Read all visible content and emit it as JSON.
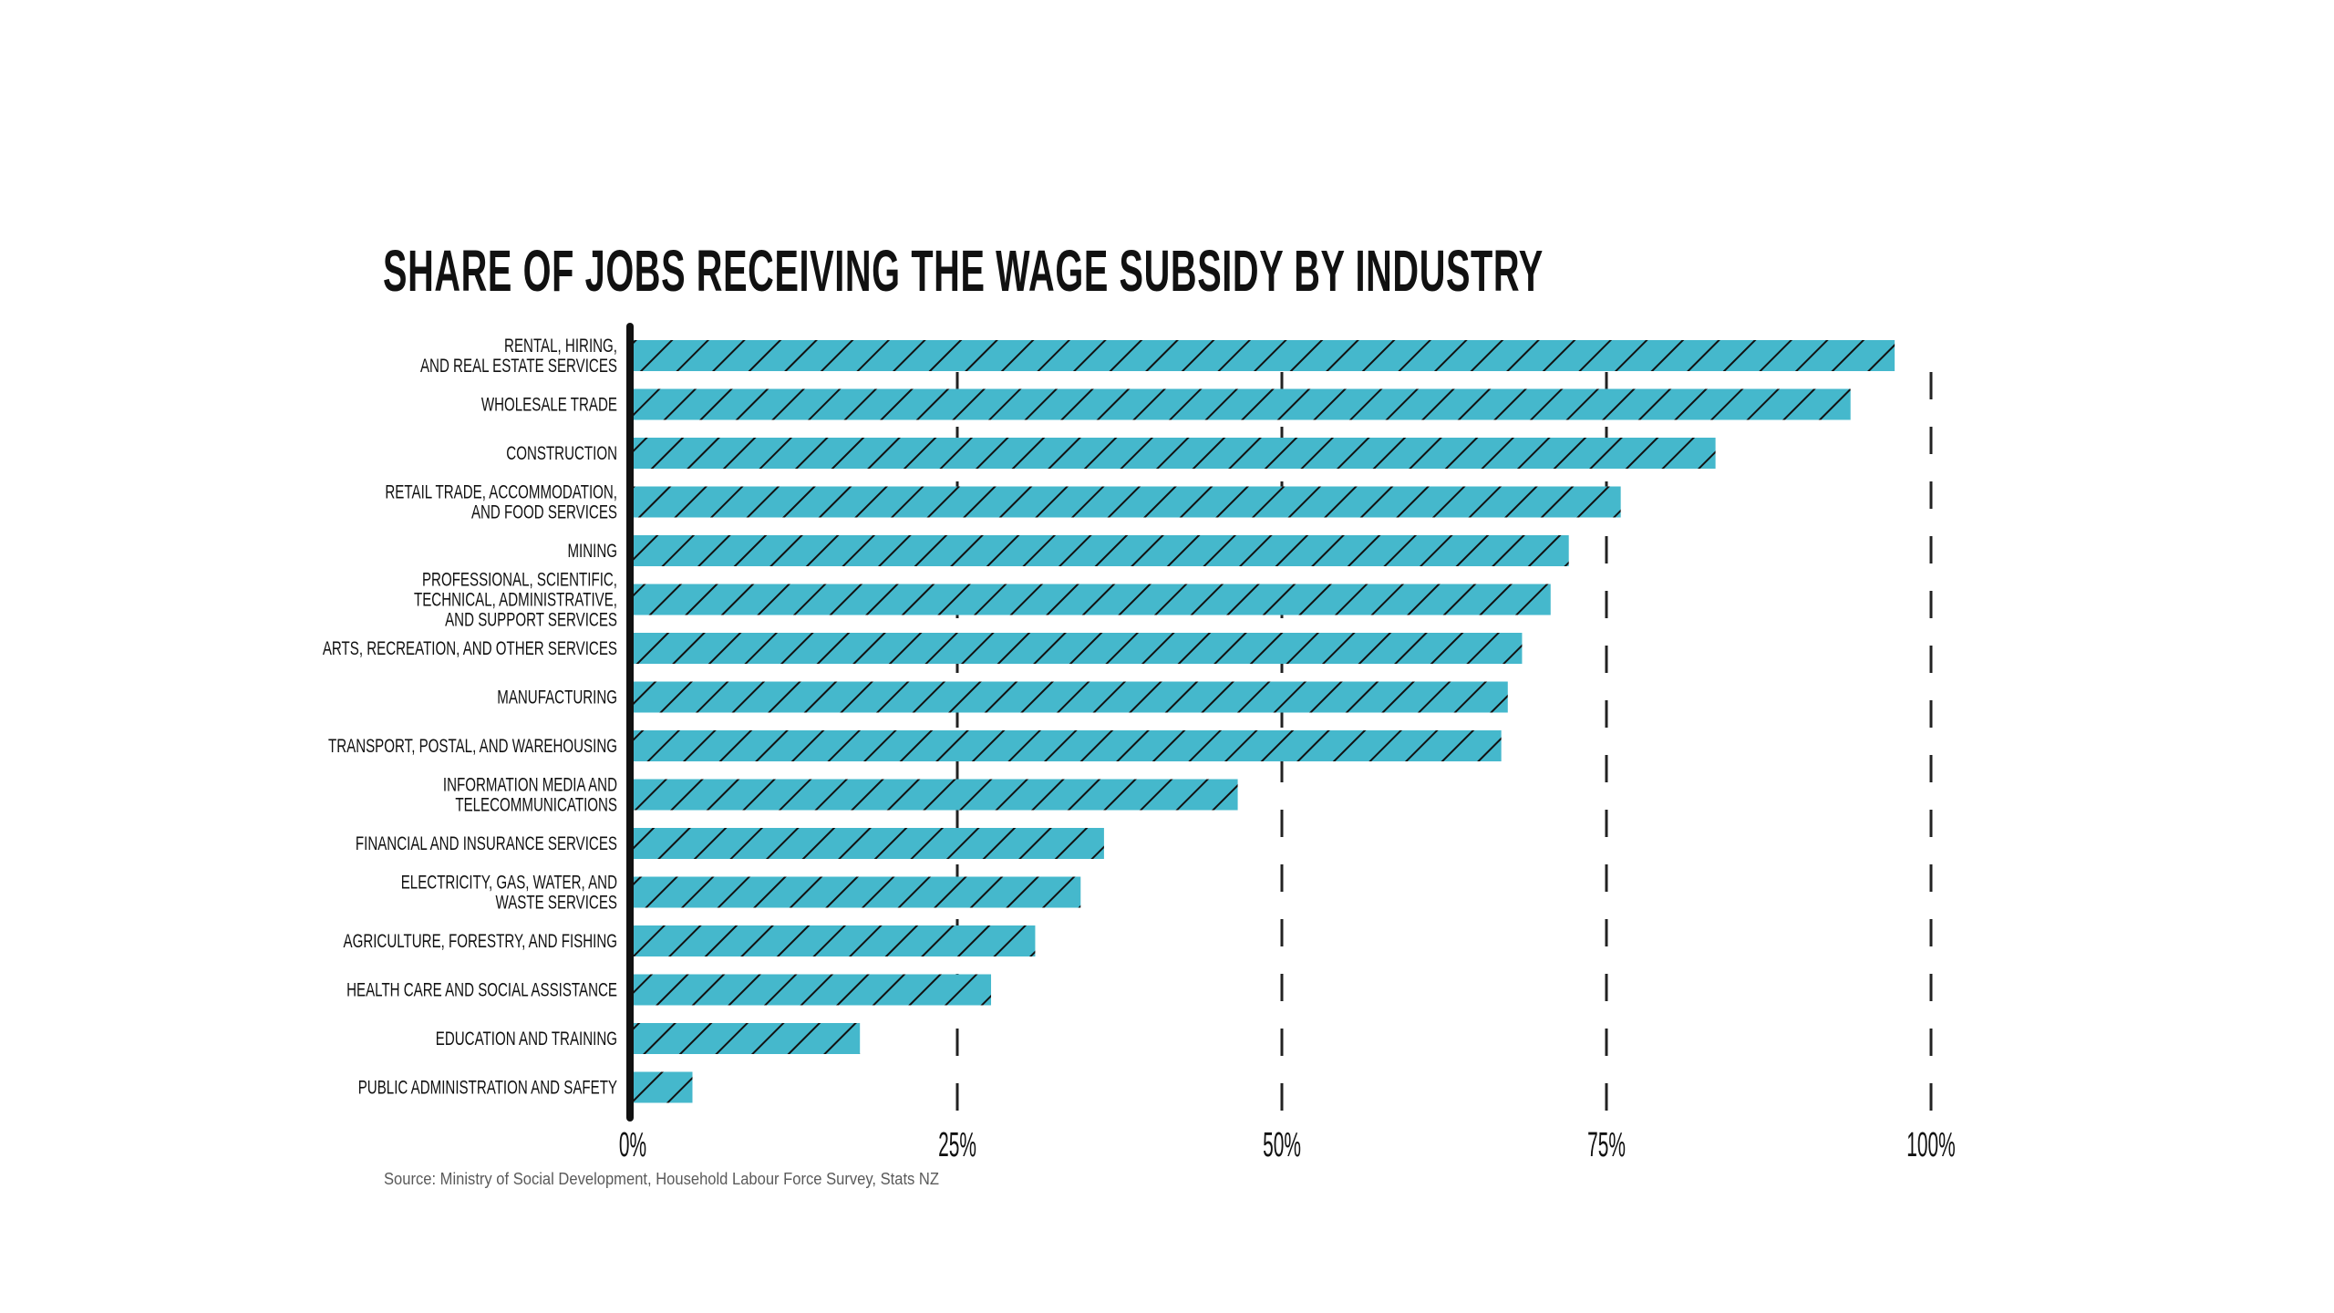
{
  "chart_data": {
    "type": "bar",
    "orientation": "horizontal",
    "title": "SHARE OF JOBS RECEIVING THE WAGE SUBSIDY BY INDUSTRY",
    "xlabel": "",
    "ylabel": "",
    "xlim": [
      0,
      100
    ],
    "x_ticks": [
      0,
      25,
      50,
      75,
      100
    ],
    "x_tick_labels": [
      "0%",
      "25%",
      "50%",
      "75%",
      "100%"
    ],
    "grid": "vertical dashed",
    "legend": "none",
    "categories": [
      [
        "RENTAL, HIRING,",
        "AND REAL ESTATE SERVICES"
      ],
      [
        "WHOLESALE TRADE"
      ],
      [
        "CONSTRUCTION"
      ],
      [
        "RETAIL TRADE, ACCOMMODATION,",
        "AND FOOD SERVICES"
      ],
      [
        "MINING"
      ],
      [
        "PROFESSIONAL, SCIENTIFIC,",
        "TECHNICAL, ADMINISTRATIVE,",
        "AND SUPPORT SERVICES"
      ],
      [
        "ARTS, RECREATION, AND OTHER SERVICES"
      ],
      [
        "MANUFACTURING"
      ],
      [
        "TRANSPORT, POSTAL, AND WAREHOUSING"
      ],
      [
        "INFORMATION MEDIA AND",
        "TELECOMMUNICATIONS"
      ],
      [
        "FINANCIAL AND INSURANCE SERVICES"
      ],
      [
        "ELECTRICITY, GAS, WATER, AND",
        "WASTE SERVICES"
      ],
      [
        "AGRICULTURE, FORESTRY, AND FISHING"
      ],
      [
        "HEALTH CARE AND SOCIAL ASSISTANCE"
      ],
      [
        "EDUCATION AND TRAINING"
      ],
      [
        "PUBLIC ADMINISTRATION AND SAFETY"
      ]
    ],
    "values": [
      97.2,
      93.8,
      83.4,
      76.1,
      72.1,
      70.7,
      68.5,
      67.4,
      66.9,
      46.6,
      36.3,
      34.5,
      31.0,
      27.6,
      17.5,
      4.6
    ],
    "unit": "%",
    "colors": {
      "bar_fill": "#45b8cc",
      "hatch": "#111111",
      "axis": "#111111",
      "grid": "#222222"
    }
  },
  "footer": {
    "source": "Source: Ministry of Social Development, Household Labour Force Survey, Stats NZ"
  }
}
